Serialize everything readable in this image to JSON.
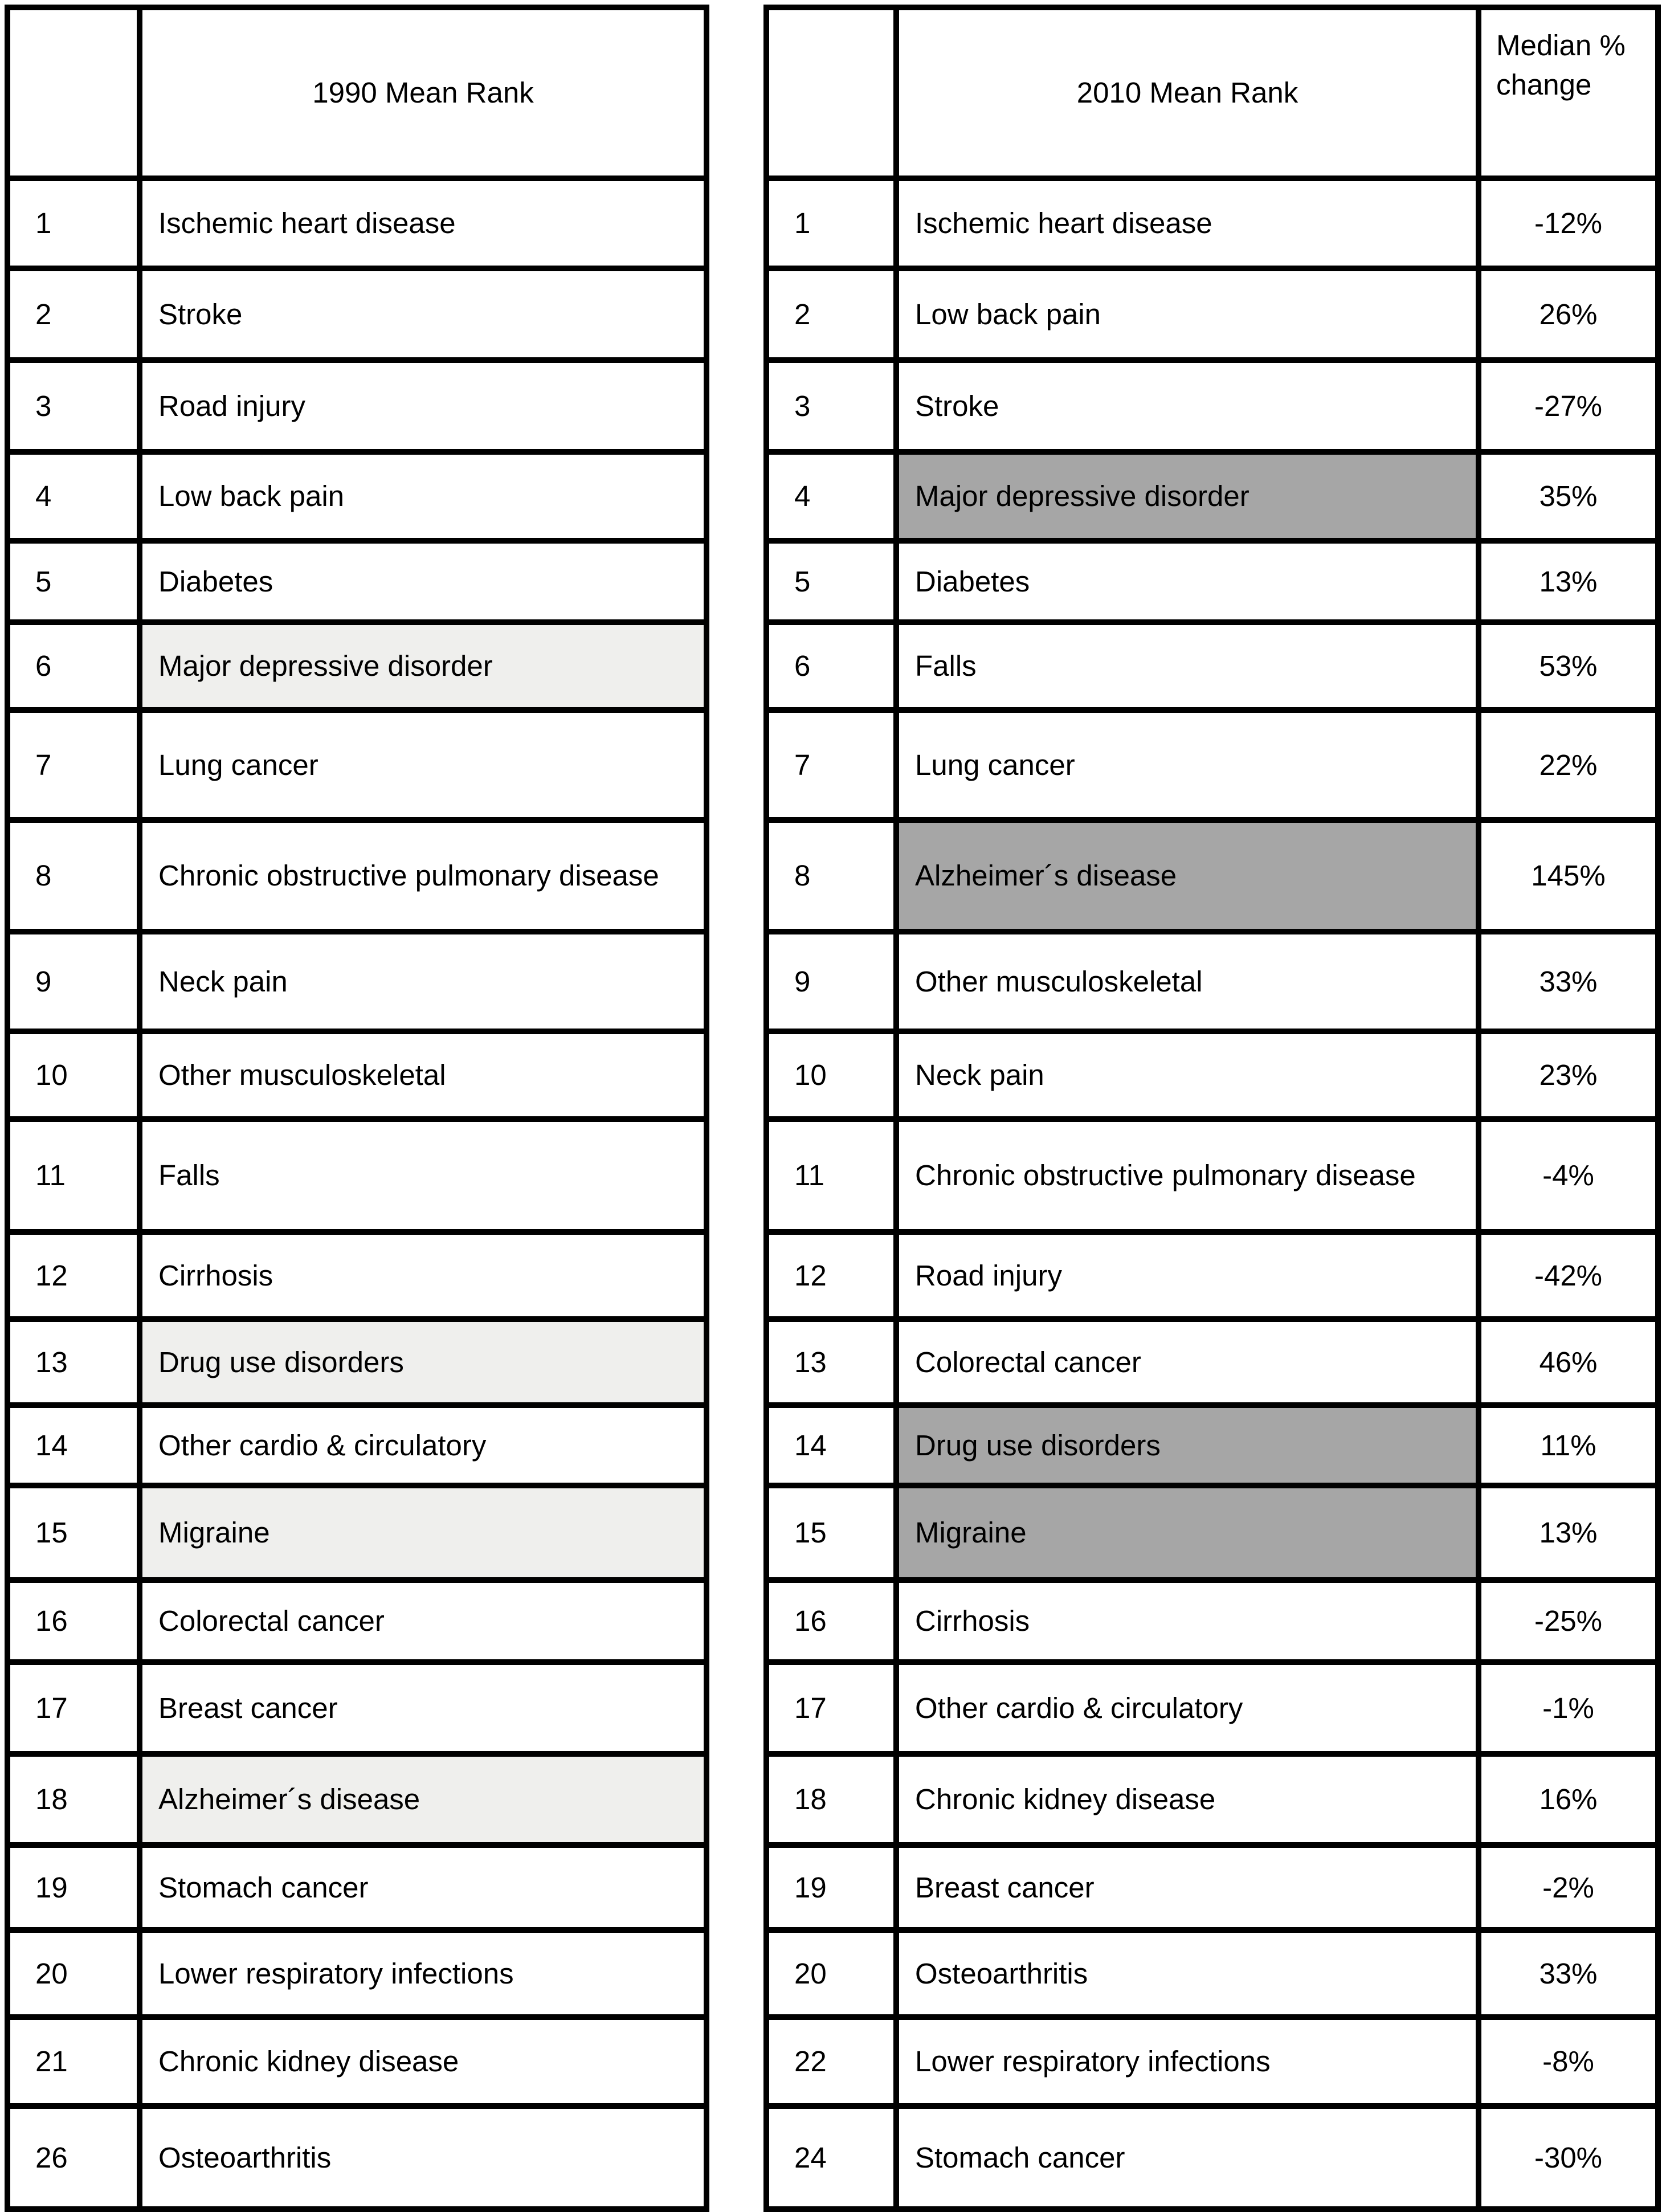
{
  "colors": {
    "background": "#ffffff",
    "border": "#000000",
    "text": "#000000",
    "highlight_1990": "#efefed",
    "highlight_2010": "#a6a6a6"
  },
  "chart_data": [
    {
      "type": "table",
      "title": "1990 Mean Rank",
      "rank_header": "",
      "columns": [
        "",
        "1990 Mean Rank"
      ],
      "highlight_color": "#efefed",
      "rows": [
        {
          "rank": "1",
          "cause": "Ischemic heart disease",
          "highlight": false
        },
        {
          "rank": "2",
          "cause": "Stroke",
          "highlight": false
        },
        {
          "rank": "3",
          "cause": "Road injury",
          "highlight": false
        },
        {
          "rank": "4",
          "cause": "Low back pain",
          "highlight": false
        },
        {
          "rank": "5",
          "cause": "Diabetes",
          "highlight": false
        },
        {
          "rank": "6",
          "cause": "Major depressive disorder",
          "highlight": true
        },
        {
          "rank": "7",
          "cause": "Lung cancer",
          "highlight": false
        },
        {
          "rank": "8",
          "cause": "Chronic obstructive pulmonary disease",
          "highlight": false
        },
        {
          "rank": "9",
          "cause": "Neck pain",
          "highlight": false
        },
        {
          "rank": "10",
          "cause": "Other musculoskeletal",
          "highlight": false
        },
        {
          "rank": "11",
          "cause": "Falls",
          "highlight": false
        },
        {
          "rank": "12",
          "cause": "Cirrhosis",
          "highlight": false
        },
        {
          "rank": "13",
          "cause": "Drug use disorders",
          "highlight": true
        },
        {
          "rank": "14",
          "cause": "Other cardio & circulatory",
          "highlight": false
        },
        {
          "rank": "15",
          "cause": "Migraine",
          "highlight": true
        },
        {
          "rank": "16",
          "cause": "Colorectal cancer",
          "highlight": false
        },
        {
          "rank": "17",
          "cause": "Breast cancer",
          "highlight": false
        },
        {
          "rank": "18",
          "cause": "Alzheimer´s disease",
          "highlight": true
        },
        {
          "rank": "19",
          "cause": "Stomach cancer",
          "highlight": false
        },
        {
          "rank": "20",
          "cause": "Lower respiratory infections",
          "highlight": false
        },
        {
          "rank": "21",
          "cause": "Chronic kidney disease",
          "highlight": false
        },
        {
          "rank": "26",
          "cause": "Osteoarthritis",
          "highlight": false
        }
      ]
    },
    {
      "type": "table",
      "title": "2010 Mean Rank",
      "rank_header": "",
      "change_header": "Median % change",
      "columns": [
        "",
        "2010 Mean Rank",
        "Median % change"
      ],
      "highlight_color": "#a6a6a6",
      "rows": [
        {
          "rank": "1",
          "cause": "Ischemic heart disease",
          "change": "-12%",
          "highlight": false
        },
        {
          "rank": "2",
          "cause": "Low back pain",
          "change": "26%",
          "highlight": false
        },
        {
          "rank": "3",
          "cause": "Stroke",
          "change": "-27%",
          "highlight": false
        },
        {
          "rank": "4",
          "cause": "Major depressive disorder",
          "change": "35%",
          "highlight": true
        },
        {
          "rank": "5",
          "cause": "Diabetes",
          "change": "13%",
          "highlight": false
        },
        {
          "rank": "6",
          "cause": "Falls",
          "change": "53%",
          "highlight": false
        },
        {
          "rank": "7",
          "cause": "Lung cancer",
          "change": "22%",
          "highlight": false
        },
        {
          "rank": "8",
          "cause": "Alzheimer´s disease",
          "change": "145%",
          "highlight": true
        },
        {
          "rank": "9",
          "cause": "Other musculoskeletal",
          "change": "33%",
          "highlight": false
        },
        {
          "rank": "10",
          "cause": "Neck pain",
          "change": "23%",
          "highlight": false
        },
        {
          "rank": "11",
          "cause": "Chronic obstructive pulmonary disease",
          "change": "-4%",
          "highlight": false
        },
        {
          "rank": "12",
          "cause": "Road injury",
          "change": "-42%",
          "highlight": false
        },
        {
          "rank": "13",
          "cause": "Colorectal cancer",
          "change": "46%",
          "highlight": false
        },
        {
          "rank": "14",
          "cause": "Drug use disorders",
          "change": "11%",
          "highlight": true
        },
        {
          "rank": "15",
          "cause": "Migraine",
          "change": "13%",
          "highlight": true
        },
        {
          "rank": "16",
          "cause": "Cirrhosis",
          "change": "-25%",
          "highlight": false
        },
        {
          "rank": "17",
          "cause": "Other cardio & circulatory",
          "change": "-1%",
          "highlight": false
        },
        {
          "rank": "18",
          "cause": "Chronic kidney disease",
          "change": "16%",
          "highlight": false
        },
        {
          "rank": "19",
          "cause": "Breast cancer",
          "change": "-2%",
          "highlight": false
        },
        {
          "rank": "20",
          "cause": "Osteoarthritis",
          "change": "33%",
          "highlight": false
        },
        {
          "rank": "22",
          "cause": "Lower respiratory infections",
          "change": "-8%",
          "highlight": false
        },
        {
          "rank": "24",
          "cause": "Stomach cancer",
          "change": "-30%",
          "highlight": false
        }
      ]
    }
  ]
}
